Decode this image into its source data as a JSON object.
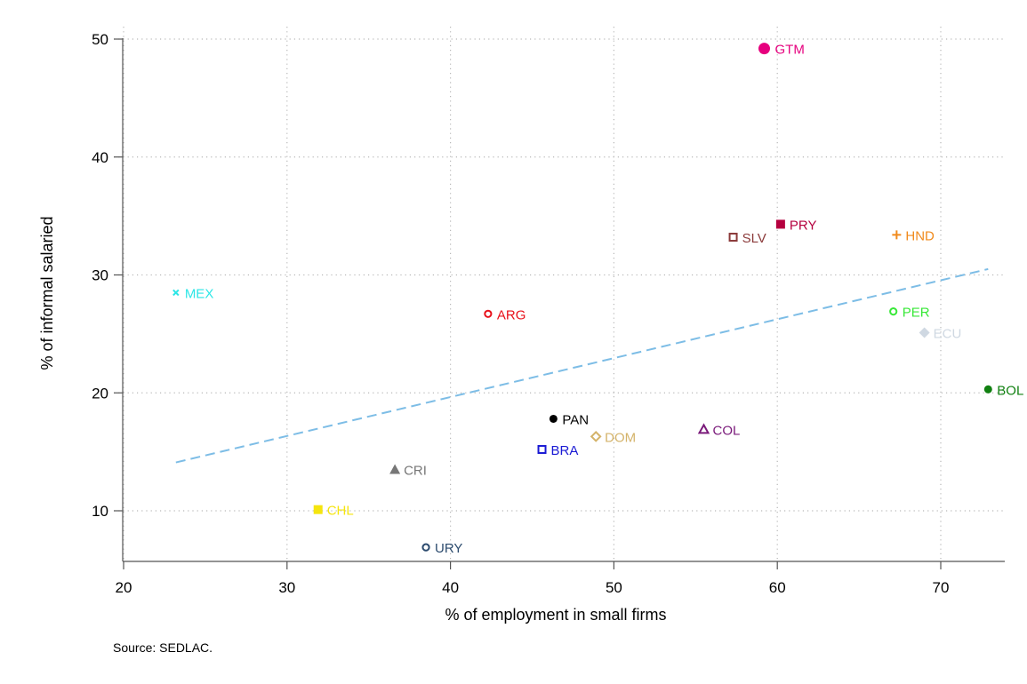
{
  "chart_data": {
    "type": "scatter",
    "xlabel": "% of employment in small firms",
    "ylabel": "% of informal salaried",
    "xlim": [
      20,
      73.5
    ],
    "ylim": [
      5.5,
      51
    ],
    "xticks": [
      20,
      30,
      40,
      50,
      60,
      70
    ],
    "yticks": [
      10,
      20,
      30,
      40,
      50
    ],
    "grid": true,
    "points": [
      {
        "label": "GTM",
        "x": 59.2,
        "y": 49.2,
        "color": "#e6007e",
        "marker": "circle-large"
      },
      {
        "label": "PRY",
        "x": 60.2,
        "y": 34.3,
        "color": "#b5003f",
        "marker": "square"
      },
      {
        "label": "SLV",
        "x": 57.3,
        "y": 33.2,
        "color": "#8b3a3a",
        "marker": "square-open"
      },
      {
        "label": "HND",
        "x": 67.3,
        "y": 33.4,
        "color": "#f08a1c",
        "marker": "plus"
      },
      {
        "label": "MEX",
        "x": 23.2,
        "y": 28.5,
        "color": "#2ce6e6",
        "marker": "x"
      },
      {
        "label": "ARG",
        "x": 42.3,
        "y": 26.7,
        "color": "#e8111b",
        "marker": "circle-open"
      },
      {
        "label": "PER",
        "x": 67.1,
        "y": 26.9,
        "color": "#38e838",
        "marker": "circle-open"
      },
      {
        "label": "ECU",
        "x": 69.0,
        "y": 25.1,
        "color": "#cfd8e2",
        "marker": "diamond"
      },
      {
        "label": "BOL",
        "x": 72.9,
        "y": 20.3,
        "color": "#118011",
        "marker": "circle"
      },
      {
        "label": "PAN",
        "x": 46.3,
        "y": 17.8,
        "color": "#000000",
        "marker": "circle"
      },
      {
        "label": "COL",
        "x": 55.5,
        "y": 16.9,
        "color": "#7a1a7a",
        "marker": "triangle-open"
      },
      {
        "label": "DOM",
        "x": 48.9,
        "y": 16.3,
        "color": "#d4b36a",
        "marker": "diamond-open"
      },
      {
        "label": "BRA",
        "x": 45.6,
        "y": 15.2,
        "color": "#1a1ad4",
        "marker": "square-open"
      },
      {
        "label": "CRI",
        "x": 36.6,
        "y": 13.5,
        "color": "#777777",
        "marker": "triangle"
      },
      {
        "label": "CHL",
        "x": 31.9,
        "y": 10.1,
        "color": "#f5e50f",
        "marker": "square"
      },
      {
        "label": "URY",
        "x": 38.5,
        "y": 6.9,
        "color": "#2c4b6e",
        "marker": "circle-open"
      }
    ],
    "fit_line": {
      "x": [
        23.2,
        72.9
      ],
      "y": [
        14.1,
        30.5
      ],
      "color": "#7dbde6",
      "style": "dashed"
    }
  },
  "footer": {
    "source": "Source: SEDLAC."
  }
}
